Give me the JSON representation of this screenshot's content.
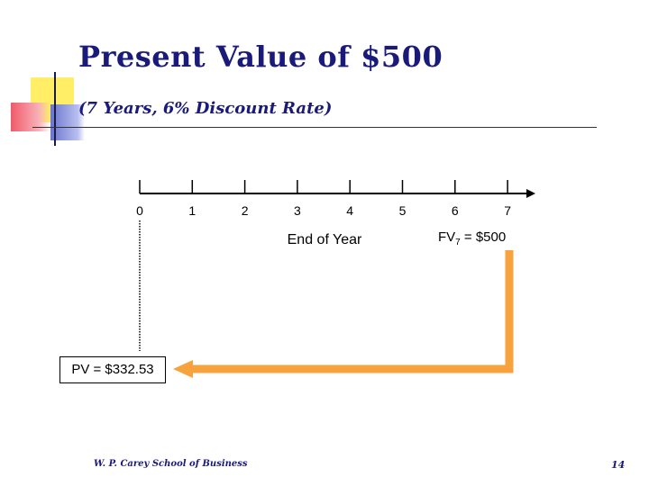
{
  "slide": {
    "title": "Present Value of $500",
    "subtitle": "(7 Years, 6% Discount Rate)",
    "footer_left": "W. P. Carey School of Business",
    "page_number": "14"
  },
  "timeline": {
    "ticks": [
      "0",
      "1",
      "2",
      "3",
      "4",
      "5",
      "6",
      "7"
    ],
    "axis_label": "End of Year"
  },
  "fv_label": {
    "prefix": "FV",
    "subscript": "7",
    "suffix": " = $500"
  },
  "pv_label": "PV = $332.53",
  "colors": {
    "title": "#1a1a7a",
    "arrow": "#f7a23d",
    "deco_yellow": "#ffee66",
    "deco_red": "#f05a6a",
    "deco_blue": "#7a84d6"
  }
}
